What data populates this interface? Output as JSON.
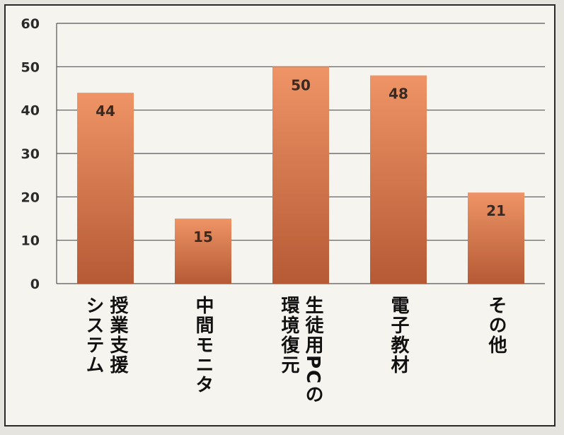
{
  "chart_data": {
    "type": "bar",
    "categories": [
      [
        "授業支援",
        "システム"
      ],
      [
        "中間モニタ"
      ],
      [
        "生徒用PCの",
        "環境復元"
      ],
      [
        "電子教材"
      ],
      [
        "その他"
      ]
    ],
    "values": [
      44,
      15,
      50,
      48,
      21
    ],
    "data_labels": [
      "44",
      "15",
      "50",
      "48",
      "21"
    ],
    "ylim": [
      0,
      60
    ],
    "yticks": [
      "0",
      "10",
      "20",
      "30",
      "40",
      "50",
      "60"
    ],
    "grid": true,
    "title": "",
    "xlabel": "",
    "ylabel": "",
    "colors": {
      "bar_top": "#ee9466",
      "bar_bottom": "#b55a35",
      "grid": "#555555",
      "frame": "#2c2a28"
    }
  }
}
